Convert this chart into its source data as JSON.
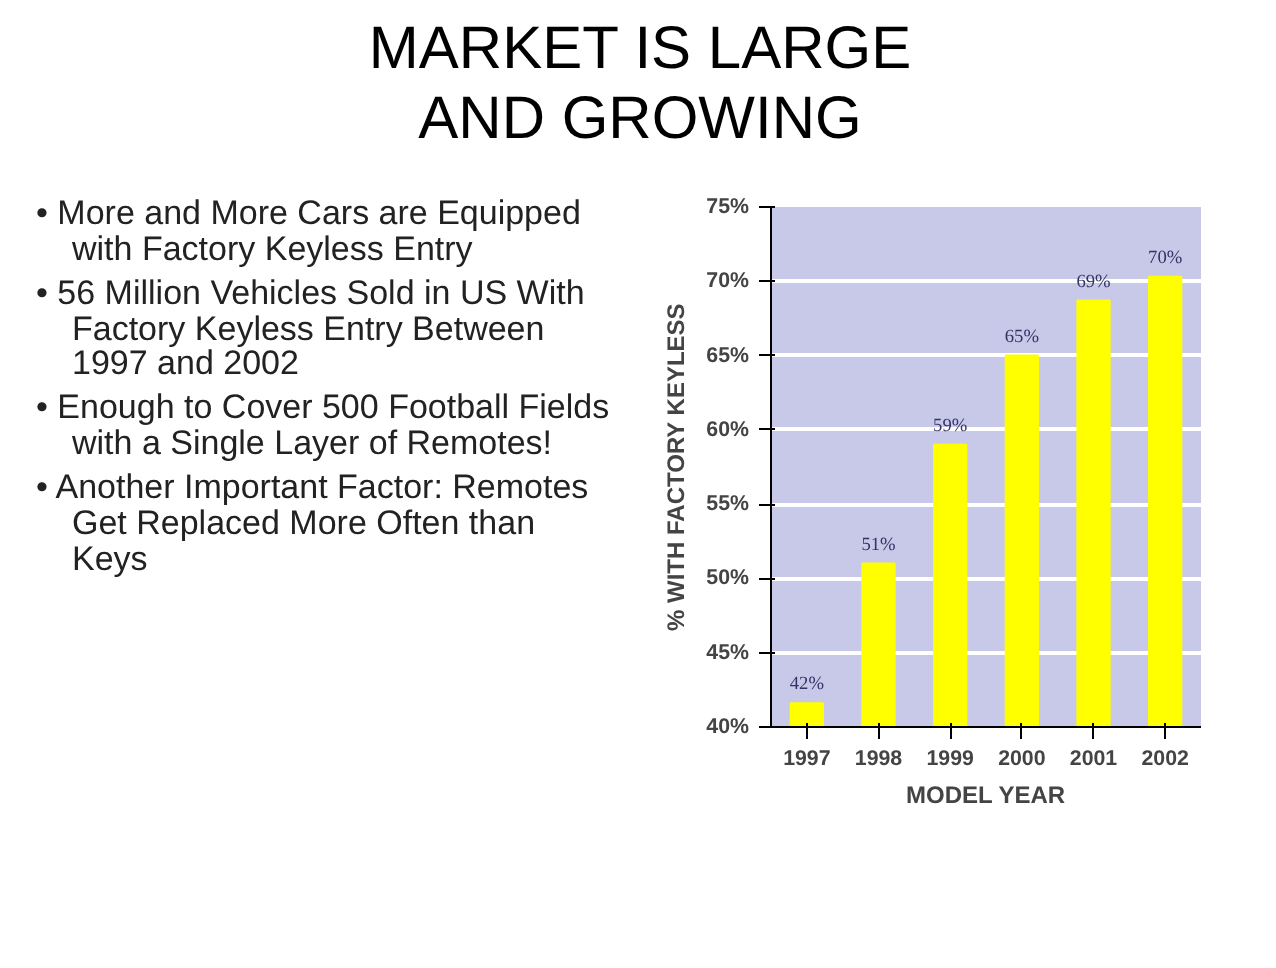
{
  "chart_data": {
    "type": "bar",
    "title": "MARKET IS LARGE AND GROWING",
    "annotations": [
      "• More and More Cars are Equipped with Factory Keyless Entry",
      "• 56 Million Vehicles Sold in US With Factory Keyless Entry Between 1997 and 2002",
      "• Enough to Cover 500 Football Fields with a Single Layer of Remotes!",
      "• Another Important Factor: Remotes Get Replaced More Often than Keys"
    ],
    "xlabel": "MODEL YEAR",
    "ylabel": "% WITH FACTORY KEYLESS",
    "categories": [
      "1997",
      "1998",
      "1999",
      "2000",
      "2001",
      "2002"
    ],
    "values": [
      41.6,
      51,
      59,
      65,
      68.7,
      70.3
    ],
    "value_labels": [
      "42%",
      "51%",
      "59%",
      "65%",
      "69%",
      "70%"
    ],
    "color": "#ffff00",
    "ylim": [
      40,
      75
    ],
    "yticks": [
      {
        "value": 40,
        "label": "40%"
      },
      {
        "value": 45,
        "label": "45%"
      },
      {
        "value": 50,
        "label": "50%"
      },
      {
        "value": 55,
        "label": "55%"
      },
      {
        "value": 60,
        "label": "60%"
      },
      {
        "value": 65,
        "label": "65%"
      },
      {
        "value": 70,
        "label": "70%"
      },
      {
        "value": 75,
        "label": "75%"
      }
    ],
    "grid": "y"
  }
}
